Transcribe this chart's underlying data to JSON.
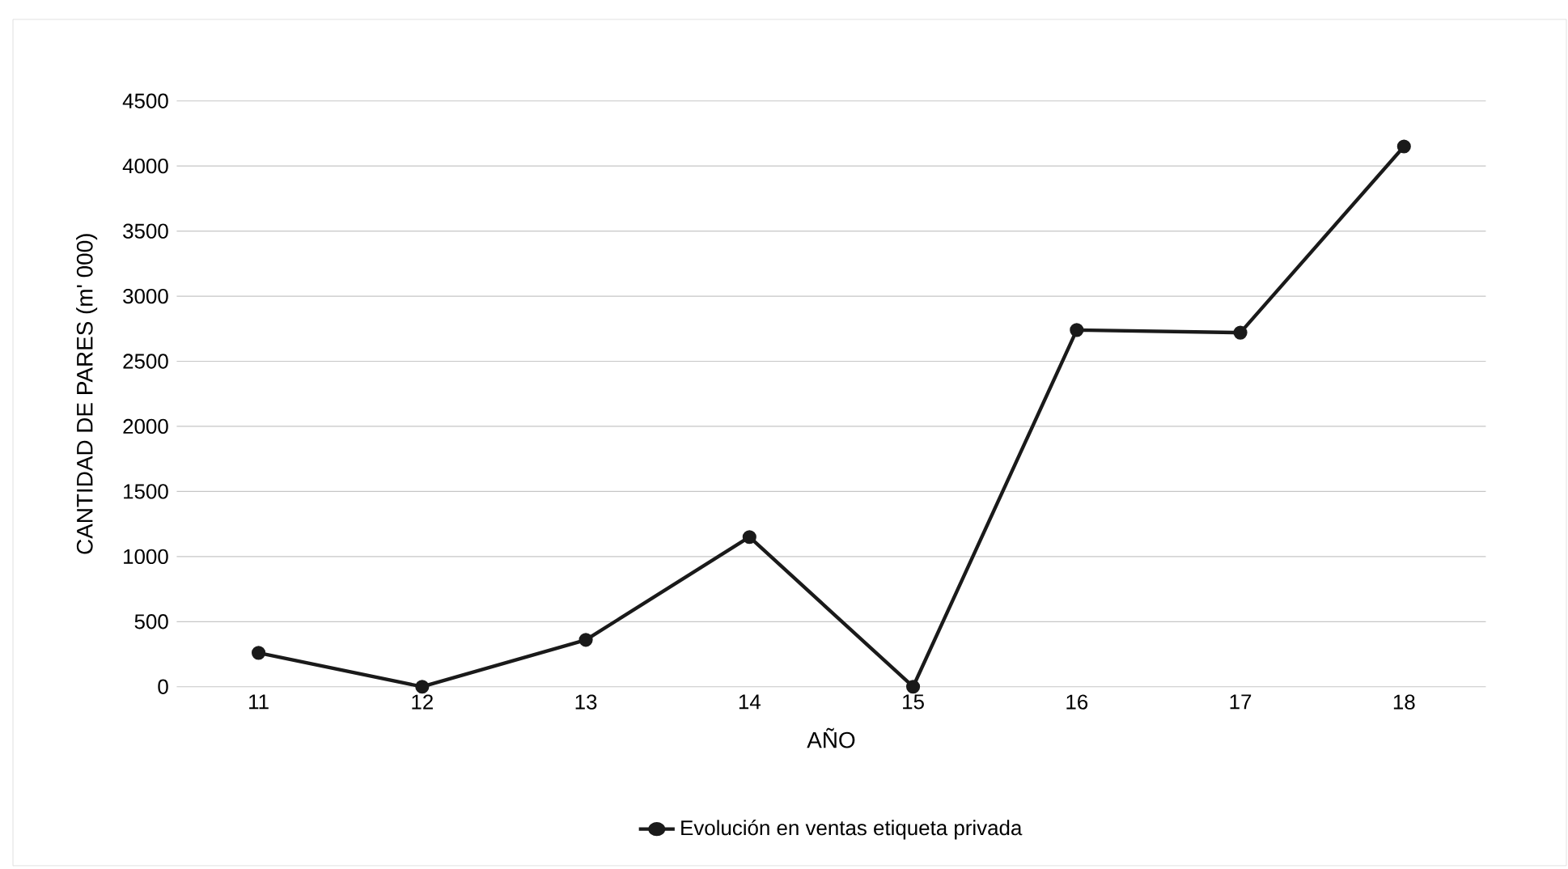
{
  "chart_data": {
    "type": "line",
    "xlabel": "AÑO",
    "ylabel": "CANTIDAD DE PARES (m' 000)",
    "categories": [
      "11",
      "12",
      "13",
      "14",
      "15",
      "16",
      "17",
      "18"
    ],
    "series": [
      {
        "name": "Evolución en ventas etiqueta privada",
        "color": "#1a1a1a",
        "values": [
          260,
          0,
          360,
          1150,
          0,
          2740,
          2720,
          4150
        ]
      }
    ],
    "ylim": [
      0,
      4500
    ],
    "yticks": [
      0,
      500,
      1000,
      1500,
      2000,
      2500,
      3000,
      3500,
      4000,
      4500
    ],
    "grid": "y",
    "legend": "bottom",
    "marker": "circle",
    "line_style": "solid"
  }
}
